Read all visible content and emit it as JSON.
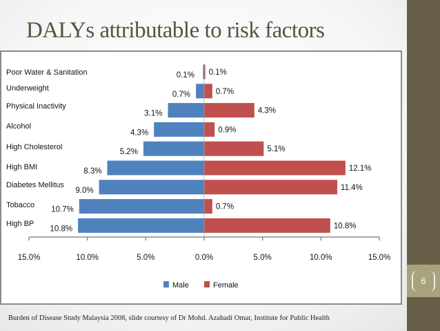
{
  "slide": {
    "title": "DALYs attributable to risk factors",
    "footnote": "Burden of Disease Study Malaysia 2008, slide courtesy of Dr Mohd. Azahadi Omar, Institute for Public Health",
    "slide_number": "6",
    "colors": {
      "male": "#4f81bd",
      "female": "#c0504d",
      "title": "#5a5240",
      "side_panel": "#675e48",
      "side_panel_band": "#a9a27f"
    }
  },
  "chart_data": {
    "type": "bar",
    "orientation": "horizontal",
    "subtype": "population-pyramid",
    "title": "DALYs attributable to risk factors",
    "xlabel": "",
    "ylabel": "",
    "categories": [
      "Poor Water & Sanitation",
      "Underweight",
      "Physical Inactivity",
      "Alcohol",
      "High Cholesterol",
      "High BMI",
      "Diabetes Mellitus",
      "Tobacco",
      "High BP"
    ],
    "series": [
      {
        "name": "Male",
        "direction": "left",
        "values": [
          0.1,
          0.7,
          3.1,
          4.3,
          5.2,
          8.3,
          9.0,
          10.7,
          10.8
        ],
        "labels": [
          "0.1%",
          "0.7%",
          "3.1%",
          "4.3%",
          "5.2%",
          "8.3%",
          "9.0%",
          "10.7%",
          "10.8%"
        ]
      },
      {
        "name": "Female",
        "direction": "right",
        "values": [
          0.1,
          0.7,
          4.3,
          0.9,
          5.1,
          12.1,
          11.4,
          0.7,
          10.8
        ],
        "labels": [
          "0.1%",
          "0.7%",
          "4.3%",
          "0.9%",
          "5.1%",
          "12.1%",
          "11.4%",
          "0.7%",
          "10.8%"
        ]
      }
    ],
    "x_ticks": [
      "15.0%",
      "10.0%",
      "5.0%",
      "0.0%",
      "5.0%",
      "10.0%",
      "15.0%"
    ],
    "x_tick_values": [
      -15,
      -10,
      -5,
      0,
      5,
      10,
      15
    ],
    "xlim": [
      -15,
      15
    ],
    "grid": false,
    "legend": {
      "position": "bottom",
      "entries": [
        "Male",
        "Female"
      ]
    }
  }
}
